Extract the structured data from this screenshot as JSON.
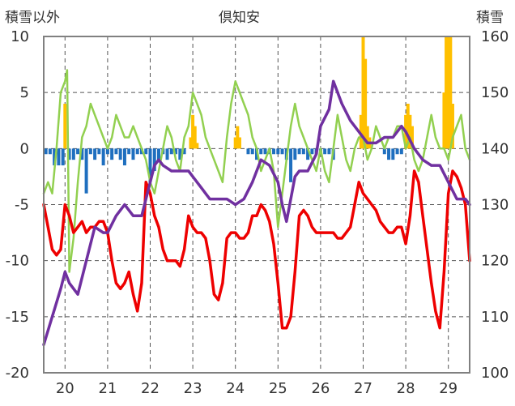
{
  "title": "倶知安",
  "left_axis_label": "積雪以外",
  "right_axis_label": "積雪",
  "chart_data": {
    "type": "line",
    "title": "倶知安",
    "ylabel_left": "積雪以外",
    "ylabel_right": "積雪",
    "ylim_left": [
      -20,
      10
    ],
    "ylim_right": [
      100,
      160
    ],
    "yticks_left": [
      10,
      5,
      0,
      -5,
      -10,
      -15,
      -20
    ],
    "yticks_right": [
      160,
      150,
      140,
      130,
      120,
      110,
      100
    ],
    "xlim": [
      19.5,
      29.5
    ],
    "xticks": [
      20,
      21,
      22,
      23,
      24,
      25,
      26,
      27,
      28,
      29
    ],
    "xticklabels": [
      "20",
      "21",
      "22",
      "23",
      "24",
      "25",
      "26",
      "27",
      "28",
      "29"
    ],
    "grid": true,
    "colors": {
      "temperature": "#ee0000",
      "snow_depth": "#7030a0",
      "secondary_line": "#92d050",
      "snowfall_bars": "#ffc000",
      "negative_bars": "#1f6fbf"
    },
    "series": [
      {
        "key": "temperature",
        "axis": "left",
        "kind": "line",
        "x": [
          19.5,
          19.6,
          19.7,
          19.8,
          19.9,
          20.0,
          20.1,
          20.2,
          20.3,
          20.4,
          20.5,
          20.6,
          20.7,
          20.8,
          20.9,
          21.0,
          21.1,
          21.2,
          21.3,
          21.4,
          21.5,
          21.6,
          21.7,
          21.8,
          21.9,
          22.0,
          22.1,
          22.2,
          22.3,
          22.4,
          22.5,
          22.6,
          22.7,
          22.8,
          22.9,
          23.0,
          23.1,
          23.2,
          23.3,
          23.4,
          23.5,
          23.6,
          23.7,
          23.8,
          23.9,
          24.0,
          24.1,
          24.2,
          24.3,
          24.4,
          24.5,
          24.6,
          24.7,
          24.8,
          24.9,
          25.0,
          25.1,
          25.2,
          25.3,
          25.4,
          25.5,
          25.6,
          25.7,
          25.8,
          25.9,
          26.0,
          26.1,
          26.2,
          26.3,
          26.4,
          26.5,
          26.6,
          26.7,
          26.8,
          26.9,
          27.0,
          27.1,
          27.2,
          27.3,
          27.4,
          27.5,
          27.6,
          27.7,
          27.8,
          27.9,
          28.0,
          28.1,
          28.2,
          28.3,
          28.4,
          28.5,
          28.6,
          28.7,
          28.8,
          28.9,
          29.0,
          29.1,
          29.2,
          29.3,
          29.4,
          29.5
        ],
        "values": [
          -5,
          -7,
          -9,
          -9.5,
          -9,
          -5,
          -6,
          -7.5,
          -7,
          -6.5,
          -7.5,
          -7,
          -7,
          -6.5,
          -6.5,
          -7.5,
          -10,
          -12,
          -12.5,
          -12,
          -11,
          -13,
          -14.5,
          -12,
          -3,
          -4,
          -6,
          -7,
          -9,
          -10,
          -10,
          -10,
          -10.5,
          -9,
          -6,
          -7,
          -7.5,
          -7.5,
          -8,
          -10,
          -13,
          -13.5,
          -12,
          -8,
          -7.5,
          -7.5,
          -8,
          -8,
          -7.5,
          -6,
          -6,
          -5,
          -5.5,
          -6.5,
          -8.5,
          -12,
          -16,
          -16,
          -15,
          -11,
          -6,
          -5.5,
          -6,
          -7,
          -7.5,
          -7.5,
          -7.5,
          -7.5,
          -7.5,
          -8,
          -8,
          -7.5,
          -7,
          -5,
          -3,
          -4,
          -4.5,
          -5,
          -5.5,
          -6.5,
          -7,
          -7.5,
          -7.5,
          -7,
          -7,
          -8.5,
          -6,
          -2,
          -3,
          -6,
          -9,
          -12,
          -14.5,
          -16,
          -11,
          -4,
          -2,
          -2.5,
          -3.5,
          -5,
          -10
        ]
      },
      {
        "key": "snow_depth",
        "axis": "right",
        "kind": "line",
        "x": [
          19.5,
          19.7,
          19.9,
          20.0,
          20.1,
          20.3,
          20.5,
          20.7,
          20.9,
          21.0,
          21.2,
          21.4,
          21.6,
          21.8,
          22.0,
          22.1,
          22.2,
          22.3,
          22.5,
          22.7,
          22.9,
          23.0,
          23.2,
          23.4,
          23.6,
          23.8,
          24.0,
          24.2,
          24.4,
          24.6,
          24.8,
          25.0,
          25.1,
          25.2,
          25.3,
          25.4,
          25.5,
          25.7,
          25.9,
          26.0,
          26.2,
          26.3,
          26.5,
          26.7,
          26.9,
          27.1,
          27.3,
          27.5,
          27.7,
          27.9,
          28.0,
          28.2,
          28.4,
          28.6,
          28.8,
          29.0,
          29.2,
          29.4,
          29.5
        ],
        "values": [
          105,
          110,
          115,
          118,
          116,
          114,
          120,
          126,
          125,
          125,
          128,
          130,
          128,
          128,
          134,
          137,
          138,
          137,
          136,
          136,
          136,
          135,
          133,
          131,
          131,
          131,
          130,
          131,
          134,
          138,
          137,
          134,
          130,
          127,
          131,
          135,
          136,
          136,
          139,
          144,
          147,
          152,
          148,
          145,
          143,
          141,
          141,
          142,
          142,
          144,
          143,
          140,
          138,
          137,
          137,
          134,
          131,
          131,
          130
        ]
      },
      {
        "key": "secondary_line",
        "axis": "left",
        "kind": "line",
        "x": [
          19.5,
          19.6,
          19.7,
          19.8,
          19.9,
          20.0,
          20.05,
          20.1,
          20.2,
          20.3,
          20.4,
          20.5,
          20.6,
          20.7,
          20.8,
          20.9,
          21.0,
          21.1,
          21.2,
          21.3,
          21.4,
          21.5,
          21.6,
          21.7,
          21.8,
          21.9,
          22.0,
          22.1,
          22.2,
          22.3,
          22.4,
          22.5,
          22.6,
          22.7,
          22.8,
          22.9,
          23.0,
          23.1,
          23.2,
          23.3,
          23.4,
          23.5,
          23.6,
          23.7,
          23.8,
          23.9,
          24.0,
          24.1,
          24.2,
          24.3,
          24.4,
          24.5,
          24.6,
          24.7,
          24.8,
          24.9,
          25.0,
          25.1,
          25.2,
          25.3,
          25.4,
          25.5,
          25.6,
          25.7,
          25.8,
          25.9,
          26.0,
          26.1,
          26.2,
          26.3,
          26.4,
          26.5,
          26.6,
          26.7,
          26.8,
          26.9,
          27.0,
          27.1,
          27.2,
          27.3,
          27.4,
          27.5,
          27.6,
          27.7,
          27.8,
          27.9,
          28.0,
          28.1,
          28.2,
          28.3,
          28.4,
          28.5,
          28.6,
          28.7,
          28.8,
          28.9,
          29.0,
          29.1,
          29.2,
          29.3,
          29.4,
          29.5
        ],
        "values": [
          -4,
          -3,
          -4,
          0,
          5,
          6,
          7,
          -11,
          -8,
          -3,
          1,
          2,
          4,
          3,
          2,
          1,
          0,
          1,
          3,
          2,
          1,
          1,
          2,
          1,
          0,
          -1,
          -3,
          -4,
          -2,
          0,
          2,
          1,
          -1,
          -2,
          1,
          2,
          5,
          4,
          3,
          1,
          0,
          -1,
          -2,
          -3,
          1,
          4,
          6,
          5,
          4,
          3,
          1,
          0,
          -2,
          -1,
          0,
          -2,
          -7,
          -4,
          -1,
          2,
          4,
          2,
          1,
          0,
          -1,
          -2,
          0,
          -2,
          -3,
          0,
          3,
          1,
          -1,
          -2,
          0,
          1,
          1,
          -1,
          0,
          2,
          1,
          0,
          1,
          1,
          2,
          2,
          0,
          1,
          -1,
          -2,
          -1,
          1,
          3,
          1,
          0,
          0,
          -1,
          1,
          2,
          3,
          0,
          -1
        ]
      },
      {
        "key": "snowfall_bars",
        "axis": "left",
        "kind": "bar_from_zero",
        "x": [
          20.0,
          22.95,
          23.0,
          23.05,
          23.1,
          24.0,
          24.05,
          24.1,
          26.95,
          27.0,
          27.05,
          27.1,
          27.15,
          28.0,
          28.05,
          28.1,
          28.15,
          28.9,
          28.95,
          29.0,
          29.05,
          29.1
        ],
        "values": [
          4,
          1,
          3,
          2,
          0.5,
          1,
          2,
          1,
          3,
          10,
          8,
          2,
          1,
          3,
          4,
          3,
          2,
          5,
          10,
          10,
          10,
          4
        ]
      },
      {
        "key": "negative_bars",
        "axis": "left",
        "kind": "bar_from_zero",
        "x": [
          19.55,
          19.65,
          19.75,
          19.85,
          19.95,
          20.1,
          20.2,
          20.3,
          20.4,
          20.5,
          20.6,
          20.7,
          20.8,
          20.9,
          21.0,
          21.1,
          21.2,
          21.3,
          21.4,
          21.5,
          21.6,
          21.7,
          21.8,
          21.9,
          22.0,
          22.1,
          22.2,
          22.3,
          22.4,
          22.5,
          22.6,
          22.7,
          22.8,
          24.3,
          24.4,
          24.5,
          24.6,
          24.7,
          24.8,
          24.9,
          25.0,
          25.1,
          25.2,
          25.3,
          25.4,
          25.5,
          25.6,
          25.7,
          25.8,
          25.9,
          26.0,
          26.1,
          26.2,
          26.3,
          27.5,
          27.6,
          27.7,
          27.8,
          27.9
        ],
        "values": [
          -0.5,
          -0.5,
          -1.5,
          -1.5,
          -1.5,
          -1.0,
          -1.0,
          -0.5,
          -1.0,
          -4.0,
          -0.5,
          -1.0,
          -0.5,
          -1.5,
          -0.5,
          -1.0,
          -0.5,
          -1.0,
          -1.5,
          -0.5,
          -1.0,
          -0.5,
          -0.5,
          -0.5,
          -3.0,
          -2.0,
          -1.0,
          -0.5,
          -1.0,
          -0.5,
          -0.5,
          -1.0,
          -0.5,
          -0.5,
          -0.5,
          -1.0,
          -0.5,
          -0.5,
          -0.5,
          -0.5,
          -0.5,
          -0.5,
          -1.0,
          -3.0,
          -1.0,
          -0.5,
          -0.5,
          -1.0,
          -0.5,
          -0.5,
          -0.5,
          -0.5,
          -0.5,
          -1.0,
          -0.5,
          -1.0,
          -1.0,
          -0.5,
          -0.5
        ]
      }
    ]
  }
}
